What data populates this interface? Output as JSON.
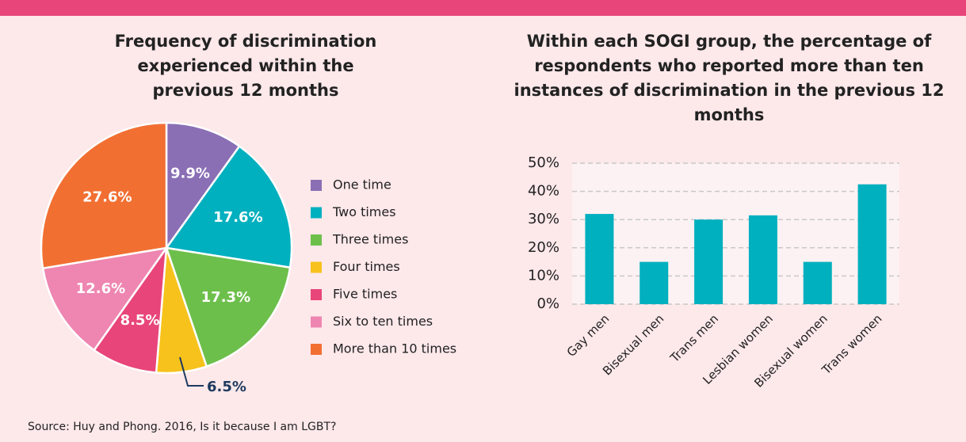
{
  "chart_data": [
    {
      "type": "pie",
      "title": "Frequency of discrimination experienced within the previous 12 months",
      "categories": [
        "One time",
        "Two times",
        "Three times",
        "Four times",
        "Five times",
        "Six to ten times",
        "More than 10 times"
      ],
      "values": [
        9.9,
        17.6,
        17.3,
        6.5,
        8.5,
        12.6,
        27.6
      ],
      "value_labels": [
        "9.9%",
        "17.6%",
        "17.3%",
        "6.5%",
        "8.5%",
        "12.6%",
        "27.6%"
      ],
      "colors": [
        "#8a6fb5",
        "#00b0bf",
        "#6dbf4b",
        "#f7c21b",
        "#e8457a",
        "#ee86b1",
        "#f26f32"
      ],
      "legend": "right"
    },
    {
      "type": "bar",
      "title": "Within each SOGI group, the percentage of respondents who reported more than ten instances of discrimination in the previous 12 months",
      "categories": [
        "Gay men",
        "Bisexual men",
        "Trans men",
        "Lesbian women",
        "Bisexual women",
        "Trans women"
      ],
      "values": [
        32,
        15,
        30,
        31.5,
        15,
        42.5
      ],
      "color": "#00b0bf",
      "ylim": [
        0,
        50
      ],
      "yticks": [
        {
          "value": 0,
          "label": "0%"
        },
        {
          "value": 10,
          "label": "10%"
        },
        {
          "value": 20,
          "label": "20%"
        },
        {
          "value": 30,
          "label": "30%"
        },
        {
          "value": 40,
          "label": "40%"
        },
        {
          "value": 50,
          "label": "50%"
        }
      ],
      "grid": true
    }
  ],
  "source": "Source: Huy and Phong. 2016, Is it because I am LGBT?"
}
